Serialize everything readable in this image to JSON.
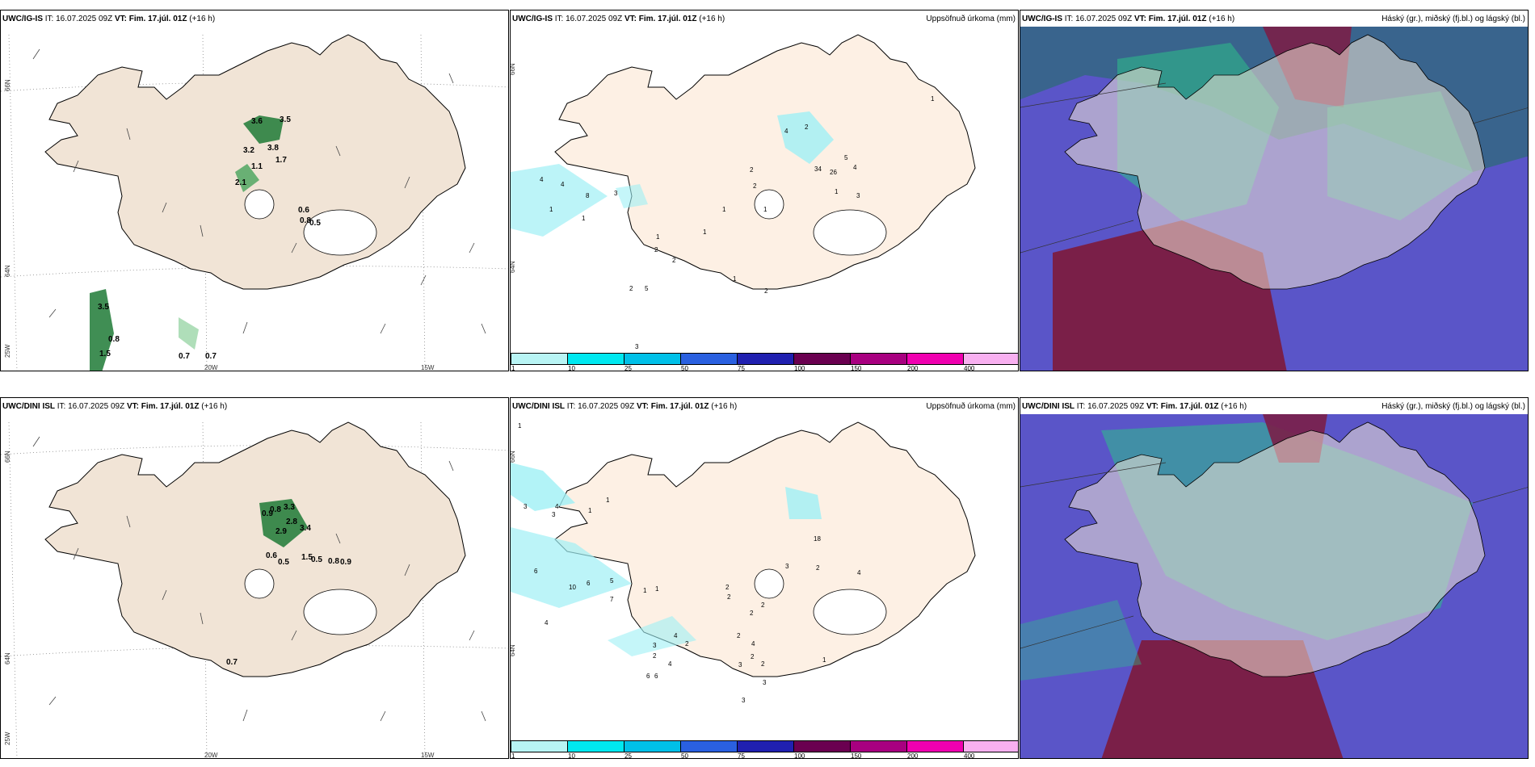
{
  "rows": [
    {
      "model": "UWC/IG-IS",
      "it_label": "IT:",
      "it_value": "16.07.2025 09Z",
      "vt_label": "VT:",
      "vt_value": "Fim. 17.júl. 01Z",
      "lead": "(+16 h)",
      "panel2_title": "Uppsöfnuð úrkoma (mm)",
      "panel3_title": "Háský (gr.), miðský (fj.bl.) og lágský (bl.)",
      "wind_values": [
        "3.6",
        "3.5",
        "3.2",
        "3.8",
        "1.1",
        "1.7",
        "2.1",
        "0.6",
        "0.8",
        "0.5",
        "3.5",
        "0.8",
        "1.5",
        "0.7",
        "0.7"
      ],
      "precip_values": [
        "4",
        "2",
        "5",
        "4",
        "34",
        "26",
        "2",
        "2",
        "1",
        "3",
        "4",
        "4",
        "1",
        "8",
        "3",
        "1",
        "1",
        "1",
        "1",
        "1",
        "2",
        "2",
        "2",
        "5",
        "1",
        "2",
        "1",
        "3"
      ]
    },
    {
      "model": "UWC/DINI ISL",
      "it_label": "IT:",
      "it_value": "16.07.2025 09Z",
      "vt_label": "VT:",
      "vt_value": "Fim. 17.júl. 01Z",
      "lead": "(+16 h)",
      "panel2_title": "Uppsöfnuð úrkoma (mm)",
      "panel3_title": "Háský (gr.), miðský (fj.bl.) og lágský (bl.)",
      "wind_values": [
        "3.3",
        "0.8",
        "0.9",
        "2.8",
        "2.9",
        "3.4",
        "0.6",
        "0.5",
        "1.5",
        "0.5",
        "0.8",
        "0.9",
        "0.7"
      ],
      "precip_values": [
        "1",
        "3",
        "4",
        "3",
        "1",
        "1",
        "18",
        "3",
        "2",
        "4",
        "6",
        "10",
        "6",
        "5",
        "7",
        "1",
        "1",
        "2",
        "2",
        "2",
        "2",
        "4",
        "4",
        "2",
        "3",
        "2",
        "6",
        "6",
        "4",
        "3",
        "2",
        "2",
        "4",
        "3",
        "2",
        "3",
        "1"
      ]
    }
  ],
  "axis_labels": {
    "lat_top": "66N",
    "lat_bottom": "64N",
    "lon_left": "25W",
    "lon_mid": "20W",
    "lon_right": "15W"
  },
  "colorbar": {
    "ticks": [
      "1",
      "10",
      "25",
      "50",
      "75",
      "100",
      "150",
      "200",
      "400"
    ],
    "colors": [
      "#b8f4f4",
      "#00e8f0",
      "#00c0e8",
      "#2a60e0",
      "#2020b0",
      "#6a0050",
      "#a80080",
      "#f000b0",
      "#f8b0f0"
    ]
  },
  "colors": {
    "land": "#f1e4d6",
    "land_precip": "#fdf0e4",
    "green_dark": "#0d5a24",
    "precip_light": "#9ff0f5",
    "cloud_purple": "#5a55c8",
    "cloud_green": "#2dbf8a",
    "cloud_maroon": "#7a1f48",
    "cloud_teal": "#2f6a7a"
  }
}
